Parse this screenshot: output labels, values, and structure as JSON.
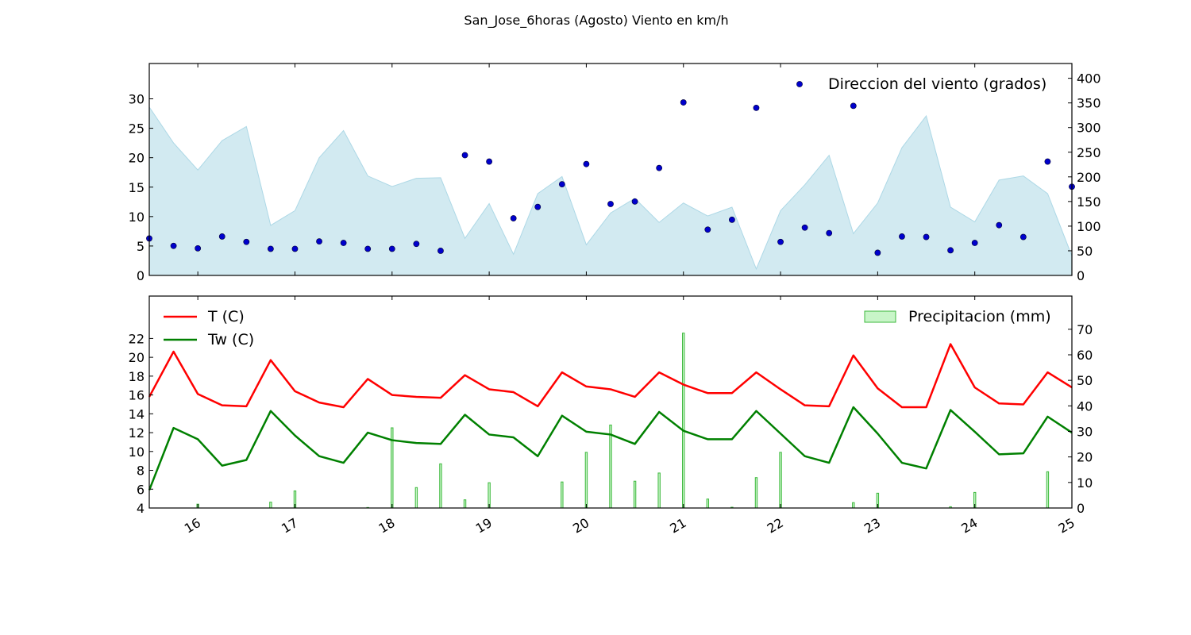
{
  "title": "San_Jose_6horas (Agosto) Viento en km/h",
  "chart_data": [
    {
      "type": "area",
      "panel": "top",
      "x_unit": "day of August 2016 (6-hour steps)",
      "x": [
        15.5,
        15.75,
        16,
        16.25,
        16.5,
        16.75,
        17,
        17.25,
        17.5,
        17.75,
        18,
        18.25,
        18.5,
        18.75,
        19,
        19.25,
        19.5,
        19.75,
        20,
        20.25,
        20.5,
        20.75,
        21,
        21.25,
        21.5,
        21.75,
        22,
        22.25,
        22.5,
        22.75,
        23,
        23.25,
        23.5,
        23.75,
        24,
        24.25,
        24.5,
        24.75,
        25
      ],
      "series": [
        {
          "render": "area",
          "axis": "left",
          "color": "#add8e6",
          "values": [
            28.6,
            22.5,
            17.9,
            22.9,
            25.3,
            8.5,
            11.0,
            20.0,
            24.6,
            16.9,
            15.1,
            16.5,
            16.6,
            6.3,
            12.2,
            3.6,
            13.9,
            16.8,
            5.2,
            10.6,
            13.1,
            9.0,
            12.3,
            10.1,
            11.6,
            1.1,
            11.0,
            15.4,
            20.4,
            7.1,
            12.3,
            21.7,
            27.1,
            11.6,
            9.1,
            16.2,
            16.9,
            13.9,
            3.3
          ]
        },
        {
          "name": "Direccion del viento (grados)",
          "render": "scatter",
          "axis": "right",
          "color": "#0000cc",
          "values": [
            75,
            60,
            55,
            79,
            68,
            54,
            54,
            69,
            66,
            54,
            54,
            64,
            50,
            244,
            231,
            116,
            139,
            185,
            226,
            145,
            150,
            218,
            351,
            93,
            113,
            340,
            68,
            97,
            86,
            344,
            46,
            79,
            78,
            51,
            66,
            102,
            78,
            231,
            180
          ]
        }
      ],
      "yleft_ticks": [
        0,
        5,
        10,
        15,
        20,
        25,
        30
      ],
      "yleft_lim": [
        0,
        36
      ],
      "yright_ticks": [
        0,
        50,
        100,
        150,
        200,
        250,
        300,
        350,
        400
      ],
      "yright_lim": [
        0,
        430
      ],
      "legend_position": "top-right"
    },
    {
      "type": "line",
      "panel": "bottom",
      "x_unit": "day of August 2016 (6-hour steps)",
      "x": [
        15.5,
        15.75,
        16,
        16.25,
        16.5,
        16.75,
        17,
        17.25,
        17.5,
        17.75,
        18,
        18.25,
        18.5,
        18.75,
        19,
        19.25,
        19.5,
        19.75,
        20,
        20.25,
        20.5,
        20.75,
        21,
        21.25,
        21.5,
        21.75,
        22,
        22.25,
        22.5,
        22.75,
        23,
        23.25,
        23.5,
        23.75,
        24,
        24.25,
        24.5,
        24.75,
        25
      ],
      "series": [
        {
          "name": "T (C)",
          "render": "line",
          "axis": "left",
          "color": "#ff0000",
          "values": [
            15.8,
            20.6,
            16.1,
            14.9,
            14.8,
            19.7,
            16.4,
            15.2,
            14.7,
            17.7,
            16.0,
            15.8,
            15.7,
            18.1,
            16.6,
            16.3,
            14.8,
            18.4,
            16.9,
            16.6,
            15.8,
            18.4,
            17.1,
            16.2,
            16.2,
            18.4,
            16.6,
            14.9,
            14.8,
            20.2,
            16.7,
            14.7,
            14.7,
            21.4,
            16.8,
            15.1,
            15.0,
            18.4,
            16.8
          ]
        },
        {
          "name": "Tw (C)",
          "render": "line",
          "axis": "left",
          "color": "#008000",
          "values": [
            5.9,
            12.5,
            11.3,
            8.5,
            9.1,
            14.3,
            11.7,
            9.5,
            8.8,
            12.0,
            11.2,
            10.9,
            10.8,
            13.9,
            11.8,
            11.5,
            9.5,
            13.8,
            12.1,
            11.8,
            10.8,
            14.2,
            12.2,
            11.3,
            11.3,
            14.3,
            11.9,
            9.5,
            8.8,
            14.7,
            11.9,
            8.8,
            8.2,
            14.4,
            12.1,
            9.7,
            9.8,
            13.7,
            12.0
          ]
        },
        {
          "name": "Precipitacion (mm)",
          "render": "bar",
          "axis": "right",
          "color": "#c8f5c8",
          "edge_color": "#3cb83c",
          "bars": [
            {
              "x": 16.0,
              "value": 1.5
            },
            {
              "x": 16.75,
              "value": 2.3
            },
            {
              "x": 17.0,
              "value": 6.7
            },
            {
              "x": 17.75,
              "value": 0.2
            },
            {
              "x": 18.0,
              "value": 31.4
            },
            {
              "x": 18.25,
              "value": 8.0
            },
            {
              "x": 18.5,
              "value": 17.3
            },
            {
              "x": 18.75,
              "value": 3.2
            },
            {
              "x": 19.0,
              "value": 9.9
            },
            {
              "x": 19.75,
              "value": 10.2
            },
            {
              "x": 20.0,
              "value": 21.8
            },
            {
              "x": 20.25,
              "value": 32.5
            },
            {
              "x": 20.5,
              "value": 10.5
            },
            {
              "x": 20.75,
              "value": 13.7
            },
            {
              "x": 21.0,
              "value": 68.5
            },
            {
              "x": 21.25,
              "value": 3.5
            },
            {
              "x": 21.5,
              "value": 0.3
            },
            {
              "x": 21.75,
              "value": 11.9
            },
            {
              "x": 22.0,
              "value": 21.8
            },
            {
              "x": 22.75,
              "value": 2.1
            },
            {
              "x": 23.0,
              "value": 5.8
            },
            {
              "x": 23.75,
              "value": 0.5
            },
            {
              "x": 24.0,
              "value": 6.1
            },
            {
              "x": 24.75,
              "value": 14.2
            }
          ]
        }
      ],
      "yleft_ticks": [
        4,
        6,
        8,
        10,
        12,
        14,
        16,
        18,
        20,
        22
      ],
      "yleft_lim": [
        4,
        26.5
      ],
      "yright_ticks": [
        0,
        10,
        20,
        30,
        40,
        50,
        60,
        70
      ],
      "yright_lim": [
        0,
        83
      ],
      "xticks": [
        16,
        17,
        18,
        19,
        20,
        21,
        22,
        23,
        24,
        25
      ],
      "xlim": [
        15.5,
        25
      ],
      "legend_position": "top-left and top-right"
    }
  ]
}
